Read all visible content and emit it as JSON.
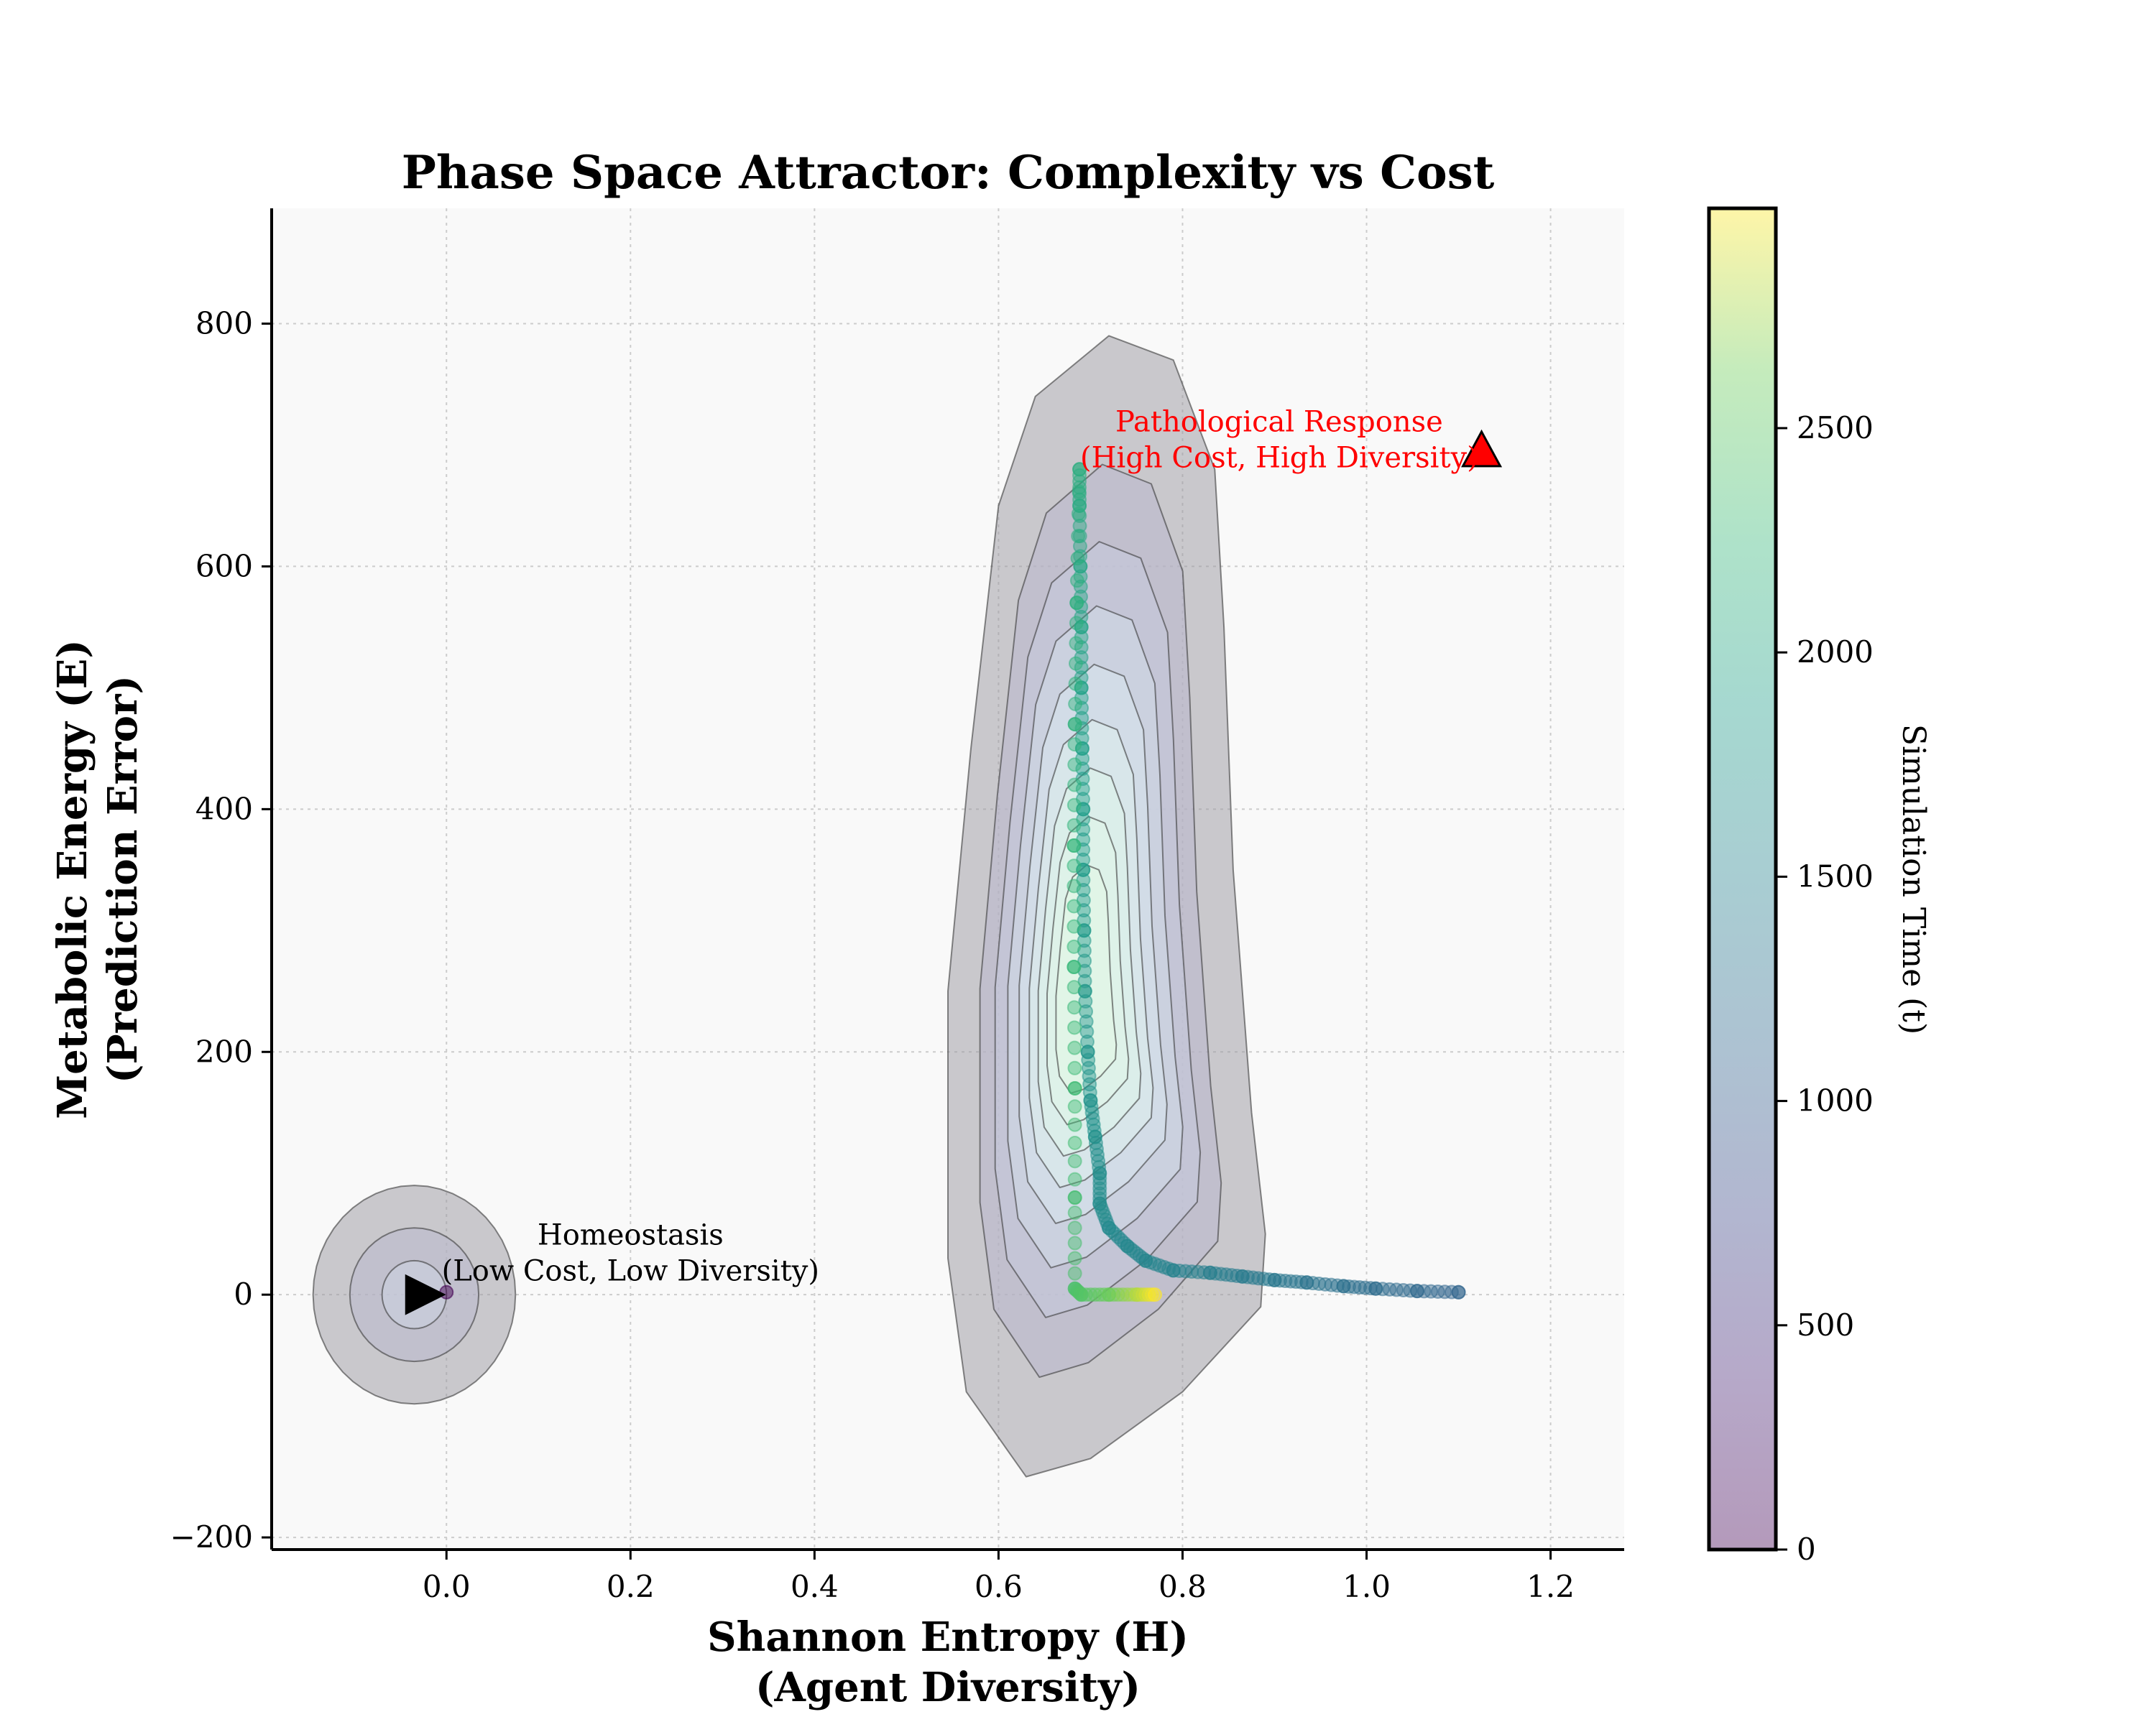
{
  "chart_data": {
    "type": "scatter",
    "title": "Phase Space Attractor: Complexity vs Cost",
    "xlabel_line1": "Shannon Entropy (H)",
    "xlabel_line2": "(Agent Diversity)",
    "ylabel_line1": "Metabolic Energy (E)",
    "ylabel_line2": "(Prediction Error)",
    "xlim": [
      -0.19,
      1.28
    ],
    "ylim": [
      -210,
      895
    ],
    "xticks": [
      {
        "v": 0.0,
        "label": "0.0"
      },
      {
        "v": 0.2,
        "label": "0.2"
      },
      {
        "v": 0.4,
        "label": "0.4"
      },
      {
        "v": 0.6,
        "label": "0.6"
      },
      {
        "v": 0.8,
        "label": "0.8"
      },
      {
        "v": 1.0,
        "label": "1.0"
      },
      {
        "v": 1.2,
        "label": "1.2"
      }
    ],
    "yticks": [
      {
        "v": -200,
        "label": "−200"
      },
      {
        "v": 0,
        "label": "0"
      },
      {
        "v": 200,
        "label": "200"
      },
      {
        "v": 400,
        "label": "400"
      },
      {
        "v": 600,
        "label": "600"
      },
      {
        "v": 800,
        "label": "800"
      }
    ],
    "grid": true,
    "colorbar": {
      "label": "Simulation Time (t)",
      "range": [
        0,
        2990
      ],
      "ticks": [
        {
          "v": 0,
          "label": "0"
        },
        {
          "v": 500,
          "label": "500"
        },
        {
          "v": 1000,
          "label": "1000"
        },
        {
          "v": 1500,
          "label": "1500"
        },
        {
          "v": 2000,
          "label": "2000"
        },
        {
          "v": 2500,
          "label": "2500"
        }
      ]
    },
    "trajectory": [
      {
        "t": 0,
        "x": 0.0,
        "y": 2
      },
      {
        "t": 1100,
        "x": 1.1,
        "y": 2
      },
      {
        "t": 1150,
        "x": 1.055,
        "y": 3
      },
      {
        "t": 1200,
        "x": 1.01,
        "y": 5
      },
      {
        "t": 1250,
        "x": 0.975,
        "y": 7
      },
      {
        "t": 1300,
        "x": 0.935,
        "y": 10
      },
      {
        "t": 1350,
        "x": 0.9,
        "y": 12
      },
      {
        "t": 1400,
        "x": 0.865,
        "y": 15
      },
      {
        "t": 1450,
        "x": 0.83,
        "y": 18
      },
      {
        "t": 1500,
        "x": 0.79,
        "y": 20
      },
      {
        "t": 1540,
        "x": 0.76,
        "y": 28
      },
      {
        "t": 1570,
        "x": 0.74,
        "y": 40
      },
      {
        "t": 1600,
        "x": 0.72,
        "y": 55
      },
      {
        "t": 1630,
        "x": 0.71,
        "y": 75
      },
      {
        "t": 1660,
        "x": 0.71,
        "y": 100
      },
      {
        "t": 1690,
        "x": 0.705,
        "y": 130
      },
      {
        "t": 1720,
        "x": 0.7,
        "y": 160
      },
      {
        "t": 1750,
        "x": 0.697,
        "y": 200
      },
      {
        "t": 1780,
        "x": 0.694,
        "y": 250
      },
      {
        "t": 1810,
        "x": 0.693,
        "y": 300
      },
      {
        "t": 1840,
        "x": 0.692,
        "y": 350
      },
      {
        "t": 1870,
        "x": 0.692,
        "y": 400
      },
      {
        "t": 1900,
        "x": 0.691,
        "y": 450
      },
      {
        "t": 1930,
        "x": 0.69,
        "y": 500
      },
      {
        "t": 1960,
        "x": 0.69,
        "y": 550
      },
      {
        "t": 2000,
        "x": 0.689,
        "y": 600
      },
      {
        "t": 2050,
        "x": 0.688,
        "y": 650
      },
      {
        "t": 2100,
        "x": 0.688,
        "y": 680
      },
      {
        "t": 2130,
        "x": 0.685,
        "y": 570
      },
      {
        "t": 2170,
        "x": 0.683,
        "y": 470
      },
      {
        "t": 2210,
        "x": 0.682,
        "y": 370
      },
      {
        "t": 2250,
        "x": 0.682,
        "y": 270
      },
      {
        "t": 2300,
        "x": 0.683,
        "y": 170
      },
      {
        "t": 2350,
        "x": 0.683,
        "y": 80
      },
      {
        "t": 2400,
        "x": 0.683,
        "y": 5
      },
      {
        "t": 2450,
        "x": 0.69,
        "y": 0
      },
      {
        "t": 2600,
        "x": 0.72,
        "y": 0
      },
      {
        "t": 2800,
        "x": 0.75,
        "y": 0
      },
      {
        "t": 2990,
        "x": 0.77,
        "y": 0
      }
    ],
    "markers": [
      {
        "name": "start",
        "x": -0.025,
        "y": 0,
        "shape": "right-triangle",
        "color": "#000000"
      },
      {
        "name": "end",
        "x": 1.125,
        "y": 695,
        "shape": "up-triangle",
        "color": "#ff0000"
      }
    ],
    "annotations": [
      {
        "name": "homeostasis",
        "x": 0.2,
        "y": 20,
        "line1": "Homeostasis",
        "line2": "(Low Cost, Low Diversity)",
        "color": "#000000"
      },
      {
        "name": "pathological",
        "x": 0.905,
        "y": 690,
        "line1": "Pathological Response",
        "line2": "(High Cost, High Diversity)",
        "color": "#ff0000"
      }
    ]
  }
}
